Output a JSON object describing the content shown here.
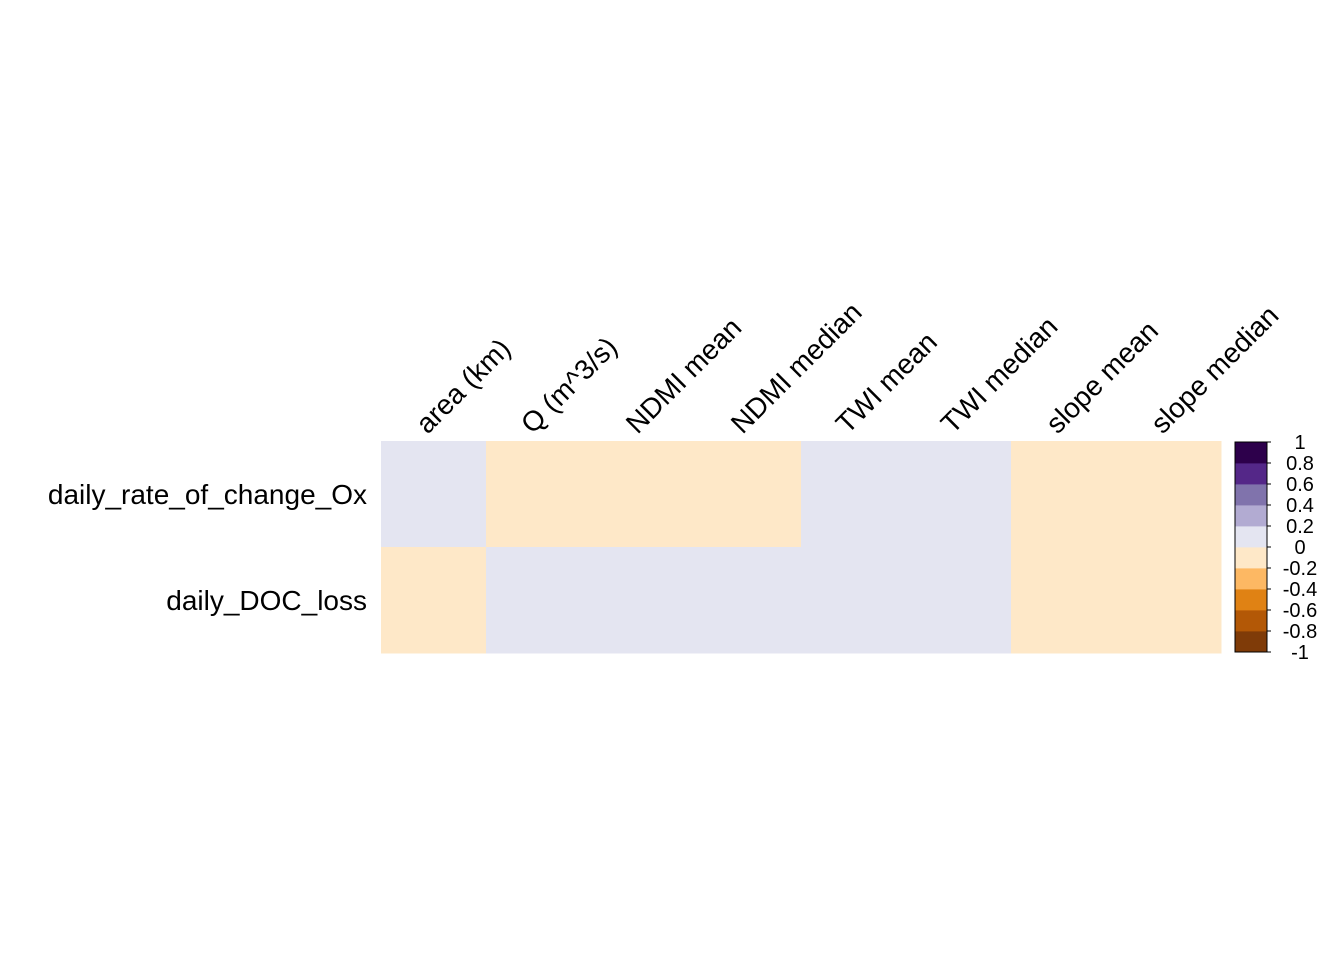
{
  "chart_data": {
    "type": "heatmap",
    "title": "",
    "xlabel": "",
    "ylabel": "",
    "columns": [
      "area (km)",
      "Q (m^3/s)",
      "NDMI mean",
      "NDMI median",
      "TWI mean",
      "TWI median",
      "slope mean",
      "slope median"
    ],
    "rows": [
      "daily_rate_of_change_Ox",
      "daily_DOC_loss"
    ],
    "values": [
      [
        0.1,
        -0.1,
        -0.1,
        -0.1,
        0.1,
        0.1,
        -0.1,
        -0.1
      ],
      [
        -0.1,
        0.1,
        0.1,
        0.1,
        0.1,
        0.1,
        -0.1,
        -0.1
      ]
    ],
    "value_range": [
      -1,
      1
    ],
    "grid": false,
    "legend_placement": "right",
    "color_scale": {
      "bins": [
        {
          "from": -1.0,
          "to": -0.8,
          "color": "#7f3b08"
        },
        {
          "from": -0.8,
          "to": -0.6,
          "color": "#b35806"
        },
        {
          "from": -0.6,
          "to": -0.4,
          "color": "#e08214"
        },
        {
          "from": -0.4,
          "to": -0.2,
          "color": "#fdb863"
        },
        {
          "from": -0.2,
          "to": 0.0,
          "color": "#fee8c8"
        },
        {
          "from": 0.0,
          "to": 0.2,
          "color": "#e4e5f1"
        },
        {
          "from": 0.2,
          "to": 0.4,
          "color": "#b2abd2"
        },
        {
          "from": 0.4,
          "to": 0.6,
          "color": "#8073ac"
        },
        {
          "from": 0.6,
          "to": 0.8,
          "color": "#542788"
        },
        {
          "from": 0.8,
          "to": 1.0,
          "color": "#2d004b"
        }
      ],
      "tick_labels": [
        "1",
        "0.8",
        "0.6",
        "0.4",
        "0.2",
        "0",
        "-0.2",
        "-0.4",
        "-0.6",
        "-0.8",
        "-1"
      ]
    }
  }
}
